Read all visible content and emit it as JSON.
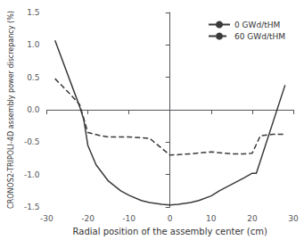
{
  "chart_data": {
    "type": "line",
    "xlabel": "Radial position of the assembly center (cm)",
    "ylabel": "CRONOS2-TRIPOLI-4D assembly power discrepancy (%)",
    "series": [
      {
        "name": "0 GWd/tHM",
        "color": "#3a3a3a",
        "line_style": "solid",
        "x": [
          -28,
          -22,
          -21,
          -20,
          -18,
          -15,
          -12,
          -10,
          -7,
          -5,
          -2,
          0,
          2,
          5,
          7,
          10,
          12,
          15,
          18,
          20,
          21,
          28
        ],
        "values": [
          1.07,
          0.05,
          -0.15,
          -0.55,
          -0.85,
          -1.1,
          -1.25,
          -1.32,
          -1.4,
          -1.43,
          -1.46,
          -1.47,
          -1.46,
          -1.43,
          -1.4,
          -1.33,
          -1.25,
          -1.15,
          -1.05,
          -0.98,
          -0.98,
          0.38
        ]
      },
      {
        "name": "60 GWd/tHM",
        "color": "#3a3a3a",
        "line_style": "dashed",
        "x": [
          -28,
          -26,
          -24,
          -22,
          -20,
          -17,
          -15,
          -10,
          -5,
          0,
          5,
          10,
          13,
          15,
          18,
          20,
          22,
          25,
          28
        ],
        "values": [
          0.48,
          0.35,
          0.22,
          0.08,
          -0.35,
          -0.4,
          -0.42,
          -0.42,
          -0.44,
          -0.7,
          -0.68,
          -0.65,
          -0.67,
          -0.68,
          -0.68,
          -0.67,
          -0.4,
          -0.38,
          -0.38
        ]
      }
    ],
    "xlim": [
      -30,
      30
    ],
    "xticks": [
      -30,
      -20,
      -10,
      0,
      10,
      20,
      30
    ],
    "ylim": [
      -1.5,
      1.5
    ],
    "yticks": [
      -1.5,
      {
        "value": -1.0,
        "label": "-1.0"
      },
      -0.5,
      {
        "value": 0.0,
        "label": "0.0"
      },
      0.5,
      {
        "value": 1.0,
        "label": "1.0"
      },
      1.5
    ],
    "grid": false,
    "legend": "upper right"
  }
}
